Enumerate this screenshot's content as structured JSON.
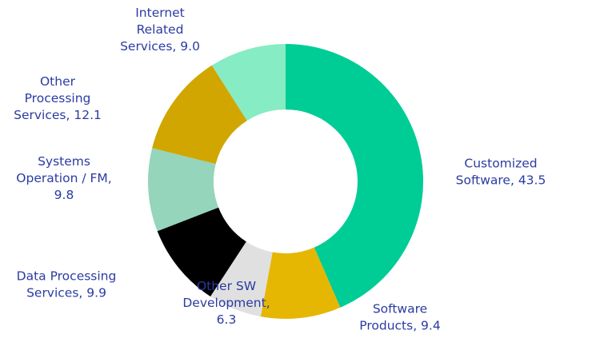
{
  "chart_data": {
    "type": "pie",
    "donut": true,
    "legend": "none",
    "slices": [
      {
        "label_lines": [
          "Customized",
          "Software, 43.5"
        ],
        "value": 43.5,
        "color": "#00cc96"
      },
      {
        "label_lines": [
          "Software",
          "Products, 9.4"
        ],
        "value": 9.4,
        "color": "#e5b703"
      },
      {
        "label_lines": [
          "Other SW",
          "Development,",
          "6.3"
        ],
        "value": 6.3,
        "color": "#e0e0e0"
      },
      {
        "label_lines": [
          "Data Processing",
          "Services, 9.9"
        ],
        "value": 9.9,
        "color": "#000000"
      },
      {
        "label_lines": [
          "Systems",
          "Operation / FM,",
          "9.8"
        ],
        "value": 9.8,
        "color": "#95d5bb"
      },
      {
        "label_lines": [
          "Other",
          "Processing",
          "Services, 12.1"
        ],
        "value": 12.1,
        "color": "#d1a601"
      },
      {
        "label_lines": [
          "Internet",
          "Related",
          "Services, 9.0"
        ],
        "value": 9.0,
        "color": "#86ecc3"
      }
    ]
  }
}
